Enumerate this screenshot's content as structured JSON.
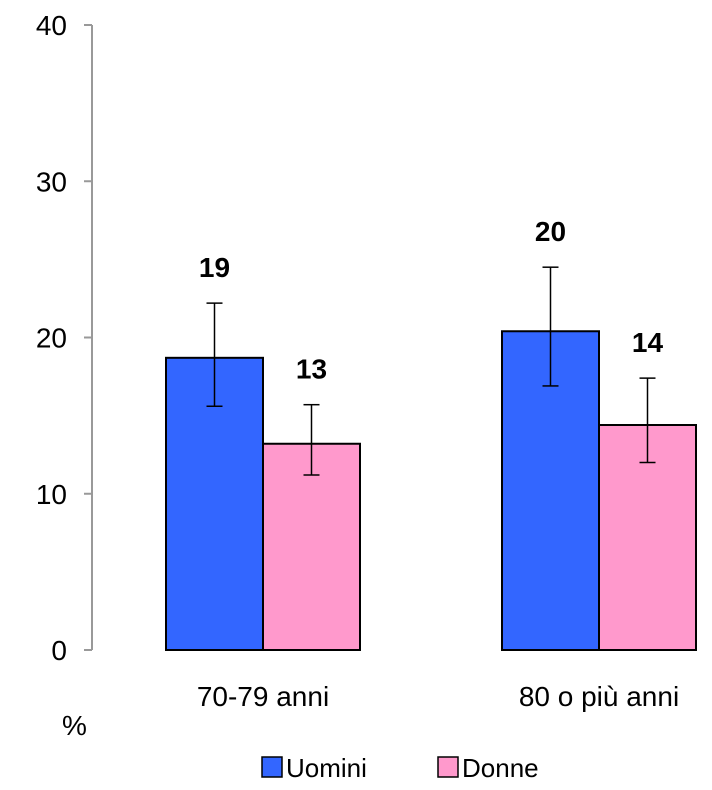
{
  "chart_data": {
    "type": "bar",
    "categories": [
      "70-79 anni",
      "80 o più anni"
    ],
    "series": [
      {
        "name": "Uomini",
        "color": "#3366ff",
        "values": [
          18.7,
          20.4
        ],
        "labels": [
          "19",
          "20"
        ],
        "error_low": [
          15.6,
          16.9
        ],
        "error_high": [
          22.2,
          24.5
        ]
      },
      {
        "name": "Donne",
        "color": "#ff99cc",
        "values": [
          13.2,
          14.4
        ],
        "labels": [
          "13",
          "14"
        ],
        "error_low": [
          11.2,
          12.0
        ],
        "error_high": [
          15.7,
          17.4
        ]
      }
    ],
    "ylim": [
      0,
      40
    ],
    "yticks": [
      "0",
      "10",
      "20",
      "30",
      "40"
    ],
    "ylabel": "%",
    "xlabel": "",
    "grid": false,
    "legend_position": "bottom"
  }
}
